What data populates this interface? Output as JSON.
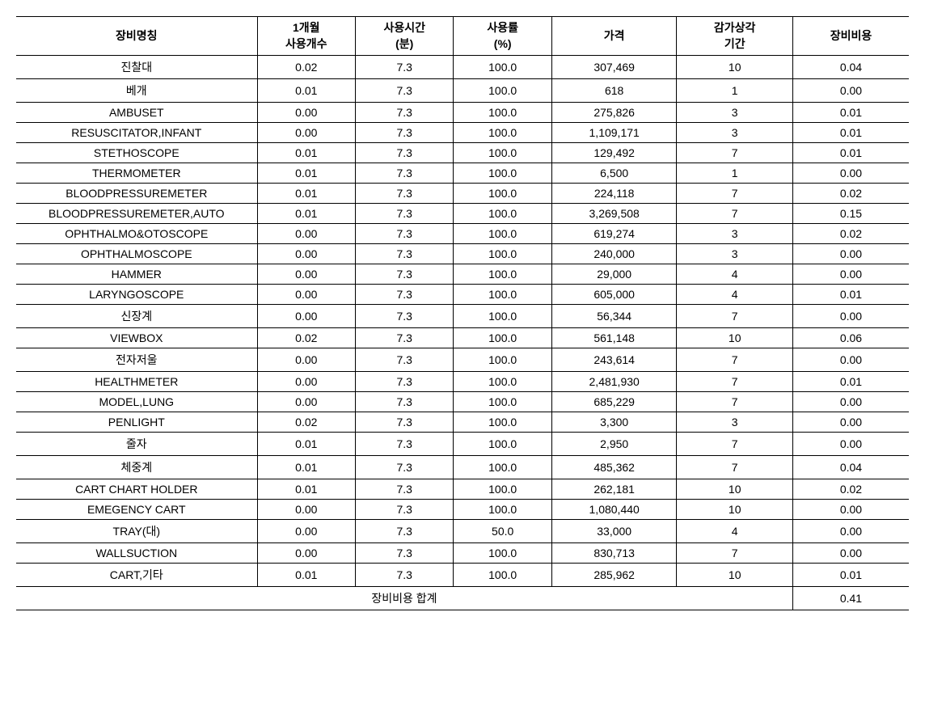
{
  "table": {
    "columns": [
      {
        "label_line1": "장비명칭",
        "label_line2": ""
      },
      {
        "label_line1": "1개월",
        "label_line2": "사용개수"
      },
      {
        "label_line1": "사용시간",
        "label_line2": "(분)"
      },
      {
        "label_line1": "사용률",
        "label_line2": "(%)"
      },
      {
        "label_line1": "가격",
        "label_line2": ""
      },
      {
        "label_line1": "감가상각",
        "label_line2": "기간"
      },
      {
        "label_line1": "장비비용",
        "label_line2": ""
      }
    ],
    "rows": [
      {
        "name": "진찰대",
        "qty": "0.02",
        "time": "7.3",
        "rate": "100.0",
        "price": "307,469",
        "period": "10",
        "cost": "0.04"
      },
      {
        "name": "베개",
        "qty": "0.01",
        "time": "7.3",
        "rate": "100.0",
        "price": "618",
        "period": "1",
        "cost": "0.00"
      },
      {
        "name": "AMBUSET",
        "qty": "0.00",
        "time": "7.3",
        "rate": "100.0",
        "price": "275,826",
        "period": "3",
        "cost": "0.01"
      },
      {
        "name": "RESUSCITATOR,INFANT",
        "qty": "0.00",
        "time": "7.3",
        "rate": "100.0",
        "price": "1,109,171",
        "period": "3",
        "cost": "0.01"
      },
      {
        "name": "STETHOSCOPE",
        "qty": "0.01",
        "time": "7.3",
        "rate": "100.0",
        "price": "129,492",
        "period": "7",
        "cost": "0.01"
      },
      {
        "name": "THERMOMETER",
        "qty": "0.01",
        "time": "7.3",
        "rate": "100.0",
        "price": "6,500",
        "period": "1",
        "cost": "0.00"
      },
      {
        "name": "BLOODPRESSUREMETER",
        "qty": "0.01",
        "time": "7.3",
        "rate": "100.0",
        "price": "224,118",
        "period": "7",
        "cost": "0.02"
      },
      {
        "name": "BLOODPRESSUREMETER,AUTO",
        "qty": "0.01",
        "time": "7.3",
        "rate": "100.0",
        "price": "3,269,508",
        "period": "7",
        "cost": "0.15"
      },
      {
        "name": "OPHTHALMO&OTOSCOPE",
        "qty": "0.00",
        "time": "7.3",
        "rate": "100.0",
        "price": "619,274",
        "period": "3",
        "cost": "0.02"
      },
      {
        "name": "OPHTHALMOSCOPE",
        "qty": "0.00",
        "time": "7.3",
        "rate": "100.0",
        "price": "240,000",
        "period": "3",
        "cost": "0.00"
      },
      {
        "name": "HAMMER",
        "qty": "0.00",
        "time": "7.3",
        "rate": "100.0",
        "price": "29,000",
        "period": "4",
        "cost": "0.00"
      },
      {
        "name": "LARYNGOSCOPE",
        "qty": "0.00",
        "time": "7.3",
        "rate": "100.0",
        "price": "605,000",
        "period": "4",
        "cost": "0.01"
      },
      {
        "name": "신장계",
        "qty": "0.00",
        "time": "7.3",
        "rate": "100.0",
        "price": "56,344",
        "period": "7",
        "cost": "0.00"
      },
      {
        "name": "VIEWBOX",
        "qty": "0.02",
        "time": "7.3",
        "rate": "100.0",
        "price": "561,148",
        "period": "10",
        "cost": "0.06"
      },
      {
        "name": "전자저울",
        "qty": "0.00",
        "time": "7.3",
        "rate": "100.0",
        "price": "243,614",
        "period": "7",
        "cost": "0.00"
      },
      {
        "name": "HEALTHMETER",
        "qty": "0.00",
        "time": "7.3",
        "rate": "100.0",
        "price": "2,481,930",
        "period": "7",
        "cost": "0.01"
      },
      {
        "name": "MODEL,LUNG",
        "qty": "0.00",
        "time": "7.3",
        "rate": "100.0",
        "price": "685,229",
        "period": "7",
        "cost": "0.00"
      },
      {
        "name": "PENLIGHT",
        "qty": "0.02",
        "time": "7.3",
        "rate": "100.0",
        "price": "3,300",
        "period": "3",
        "cost": "0.00"
      },
      {
        "name": "줄자",
        "qty": "0.01",
        "time": "7.3",
        "rate": "100.0",
        "price": "2,950",
        "period": "7",
        "cost": "0.00"
      },
      {
        "name": "체중계",
        "qty": "0.01",
        "time": "7.3",
        "rate": "100.0",
        "price": "485,362",
        "period": "7",
        "cost": "0.04"
      },
      {
        "name": "CART CHART HOLDER",
        "qty": "0.01",
        "time": "7.3",
        "rate": "100.0",
        "price": "262,181",
        "period": "10",
        "cost": "0.02"
      },
      {
        "name": "EMEGENCY CART",
        "qty": "0.00",
        "time": "7.3",
        "rate": "100.0",
        "price": "1,080,440",
        "period": "10",
        "cost": "0.00"
      },
      {
        "name": "TRAY(대)",
        "qty": "0.00",
        "time": "7.3",
        "rate": "50.0",
        "price": "33,000",
        "period": "4",
        "cost": "0.00"
      },
      {
        "name": "WALLSUCTION",
        "qty": "0.00",
        "time": "7.3",
        "rate": "100.0",
        "price": "830,713",
        "period": "7",
        "cost": "0.00"
      },
      {
        "name": "CART,기타",
        "qty": "0.01",
        "time": "7.3",
        "rate": "100.0",
        "price": "285,962",
        "period": "10",
        "cost": "0.01"
      }
    ],
    "summary": {
      "label": "장비비용 합계",
      "total": "0.41"
    },
    "styling": {
      "border_color": "#000000",
      "background_color": "#ffffff",
      "font_size_header": 14,
      "font_size_body": 14,
      "thick_border_width": 1.5,
      "thin_border_width": 1
    }
  }
}
